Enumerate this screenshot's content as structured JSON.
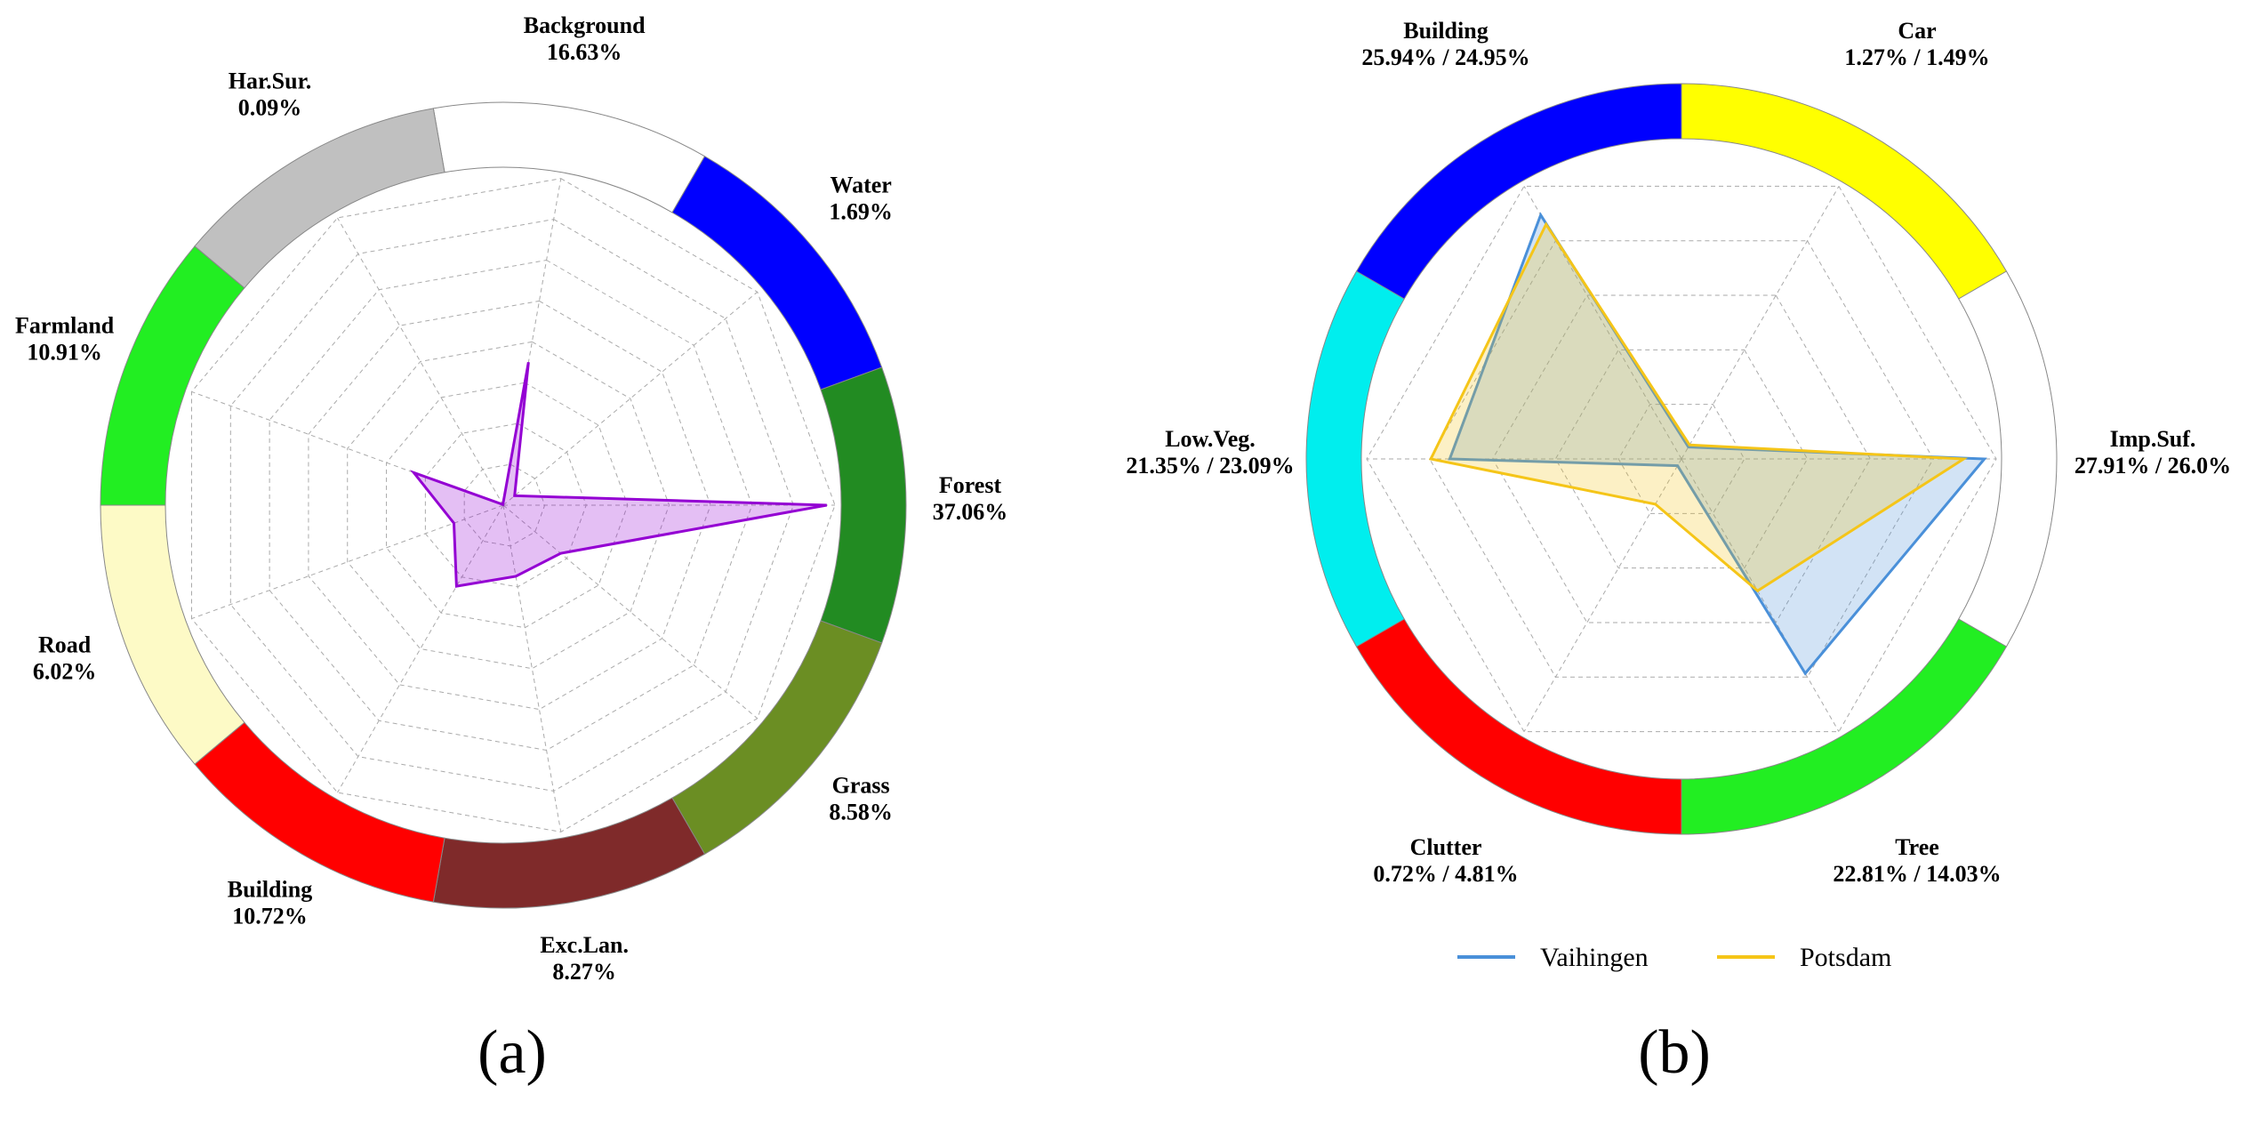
{
  "chart_data": [
    {
      "type": "radar",
      "title": "(a)",
      "categories": [
        "Background",
        "Water",
        "Forest",
        "Grass",
        "Exc.Lan.",
        "Building",
        "Road",
        "Farmland",
        "Har.Sur."
      ],
      "values": [
        16.63,
        1.69,
        37.06,
        8.58,
        8.27,
        10.72,
        6.02,
        10.91,
        0.09
      ],
      "value_labels": [
        "16.63%",
        "1.69%",
        "37.06%",
        "8.58%",
        "8.27%",
        "10.72%",
        "6.02%",
        "10.91%",
        "0.09%"
      ],
      "color": "#9400d3",
      "segment_colors": [
        "#ffffff",
        "#0000ff",
        "#228b22",
        "#6b8e23",
        "#7f2a2a",
        "#ff0000",
        "#fdfac6",
        "#22ee22",
        "#c0c0c0"
      ],
      "rlim": [
        0,
        38
      ],
      "grid": true
    },
    {
      "type": "radar",
      "title": "(b)",
      "categories": [
        "Car",
        "Imp.Suf.",
        "Tree",
        "Clutter",
        "Low.Veg.",
        "Building"
      ],
      "series": [
        {
          "name": "Vaihingen",
          "color": "#4a90d9",
          "values": [
            1.27,
            27.91,
            22.81,
            0.72,
            21.35,
            25.94
          ],
          "value_labels": [
            "1.27%",
            "27.91%",
            "22.81%",
            "0.72%",
            "21.35%",
            "25.94%"
          ]
        },
        {
          "name": "Potsdam",
          "color": "#f5c518",
          "values": [
            1.49,
            26.0,
            14.03,
            4.81,
            23.09,
            24.95
          ],
          "value_labels": [
            "1.49%",
            "26.0%",
            "14.03%",
            "4.81%",
            "23.09%",
            "24.95%"
          ]
        }
      ],
      "label_separator": " / ",
      "segment_colors": [
        "#ffff00",
        "#ffffff",
        "#22ee22",
        "#ff0000",
        "#00eeee",
        "#0000ff"
      ],
      "rlim": [
        0,
        29
      ],
      "grid": true,
      "legend": "bottom"
    }
  ]
}
